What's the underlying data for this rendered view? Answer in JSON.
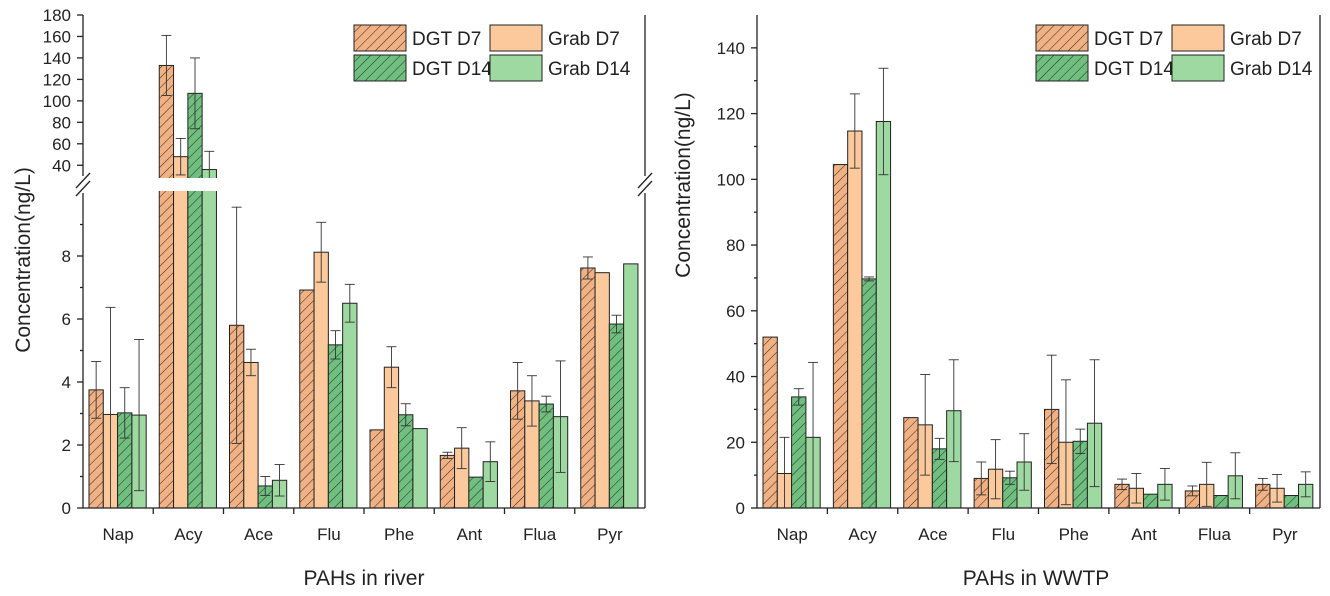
{
  "colors": {
    "dgt_d7": "#f2b183",
    "grab_d7": "#fbc99c",
    "dgt_d14": "#6fbf7f",
    "grab_d14": "#9fd9a2",
    "stroke": "#222222",
    "hatch": "#333333"
  },
  "chart_data": [
    {
      "type": "bar",
      "xlabel": "PAHs in river",
      "ylabel": "Concentration(ng/L)",
      "categories": [
        "Nap",
        "Acy",
        "Ace",
        "Flu",
        "Phe",
        "Ant",
        "Flua",
        "Pyr"
      ],
      "axis_break": true,
      "lower_ylim": [
        0,
        10
      ],
      "lower_yticks": [
        "0",
        "2",
        "4",
        "6",
        "8"
      ],
      "upper_ylim": [
        30,
        180
      ],
      "upper_yticks": [
        "40",
        "60",
        "80",
        "100",
        "120",
        "140",
        "160",
        "180"
      ],
      "legend_position": "top-right",
      "series": [
        {
          "name": "DGT D7",
          "hatched": true,
          "color_key": "dgt_d7",
          "values": [
            3.75,
            133,
            5.8,
            6.92,
            2.48,
            1.67,
            3.72,
            7.62
          ],
          "errors": [
            0.9,
            28,
            3.75,
            0,
            0,
            0.1,
            0.9,
            0.35
          ]
        },
        {
          "name": "Grab D7",
          "hatched": false,
          "color_key": "grab_d7",
          "values": [
            2.97,
            48,
            4.62,
            8.12,
            4.47,
            1.9,
            3.4,
            7.47
          ],
          "errors": [
            3.4,
            17,
            0.42,
            0.95,
            0.65,
            0.65,
            0.8,
            0
          ]
        },
        {
          "name": "DGT D14",
          "hatched": true,
          "color_key": "dgt_d14",
          "values": [
            3.02,
            107,
            0.7,
            5.18,
            2.96,
            0.98,
            3.3,
            5.84
          ],
          "errors": [
            0.8,
            33,
            0.3,
            0.45,
            0.35,
            0,
            0.25,
            0.28
          ]
        },
        {
          "name": "Grab D14",
          "hatched": false,
          "color_key": "grab_d14",
          "values": [
            2.95,
            36,
            0.88,
            6.5,
            2.52,
            1.47,
            2.9,
            7.75
          ],
          "errors": [
            2.4,
            17,
            0.5,
            0.6,
            0,
            0.63,
            1.77,
            0
          ]
        }
      ]
    },
    {
      "type": "bar",
      "xlabel": "PAHs in WWTP",
      "ylabel": "Concentration(ng/L)",
      "categories": [
        "Nap",
        "Acy",
        "Ace",
        "Flu",
        "Phe",
        "Ant",
        "Flua",
        "Pyr"
      ],
      "ylim": [
        0,
        150
      ],
      "yticks": [
        "0",
        "20",
        "40",
        "60",
        "80",
        "100",
        "120",
        "140"
      ],
      "legend_position": "top-right",
      "series": [
        {
          "name": "DGT D7",
          "hatched": true,
          "color_key": "dgt_d7",
          "values": [
            52,
            104.5,
            27.5,
            9,
            30,
            7.2,
            5.2,
            7.2
          ],
          "errors": [
            0,
            0,
            0,
            5,
            16.5,
            1.6,
            1.5,
            1.8
          ]
        },
        {
          "name": "Grab D7",
          "hatched": false,
          "color_key": "grab_d7",
          "values": [
            10.5,
            114.7,
            25.3,
            11.8,
            20,
            6,
            7.2,
            6
          ],
          "errors": [
            11,
            11.3,
            15.3,
            9,
            19,
            4.5,
            6.7,
            4.2
          ]
        },
        {
          "name": "DGT D14",
          "hatched": true,
          "color_key": "dgt_d14",
          "values": [
            33.8,
            69.7,
            18,
            9.2,
            20.3,
            4.2,
            3.8,
            3.8
          ],
          "errors": [
            2.5,
            0.6,
            3.2,
            2,
            3.7,
            0,
            0,
            0
          ]
        },
        {
          "name": "Grab D14",
          "hatched": false,
          "color_key": "grab_d14",
          "values": [
            21.5,
            117.6,
            29.6,
            14,
            25.8,
            7.2,
            9.8,
            7.2
          ],
          "errors": [
            22.8,
            16.2,
            15.5,
            8.6,
            19.3,
            4.8,
            7,
            3.8
          ]
        }
      ]
    }
  ]
}
